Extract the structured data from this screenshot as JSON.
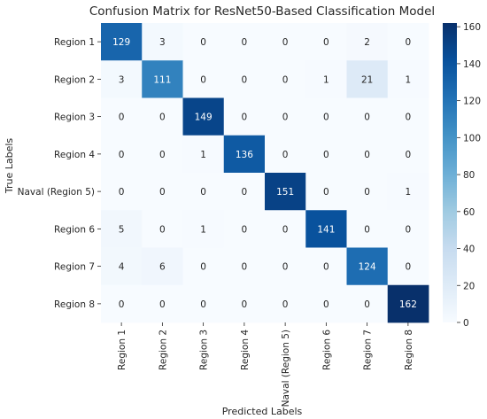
{
  "chart_data": {
    "type": "heatmap",
    "title": "Confusion Matrix for ResNet50-Based Classification Model",
    "xlabel": "Predicted Labels",
    "ylabel": "True Labels",
    "x_categories": [
      "Region 1",
      "Region 2",
      "Region 3",
      "Region 4",
      "Naval (Region 5)",
      "Region 6",
      "Region 7",
      "Region 8"
    ],
    "y_categories": [
      "Region 1",
      "Region 2",
      "Region 3",
      "Region 4",
      "Naval (Region 5)",
      "Region 6",
      "Region 7",
      "Region 8"
    ],
    "values": [
      [
        129,
        3,
        0,
        0,
        0,
        0,
        2,
        0
      ],
      [
        3,
        111,
        0,
        0,
        0,
        1,
        21,
        1
      ],
      [
        0,
        0,
        149,
        0,
        0,
        0,
        0,
        0
      ],
      [
        0,
        0,
        1,
        136,
        0,
        0,
        0,
        0
      ],
      [
        0,
        0,
        0,
        0,
        151,
        0,
        0,
        1
      ],
      [
        5,
        0,
        1,
        0,
        0,
        141,
        0,
        0
      ],
      [
        4,
        6,
        0,
        0,
        0,
        0,
        124,
        0
      ],
      [
        0,
        0,
        0,
        0,
        0,
        0,
        0,
        162
      ]
    ],
    "colorbar": {
      "colormap": "Blues",
      "range": [
        0,
        162
      ],
      "ticks": [
        0,
        20,
        40,
        60,
        80,
        100,
        120,
        140,
        160
      ]
    },
    "annotations": "cell counts shown in each cell"
  }
}
